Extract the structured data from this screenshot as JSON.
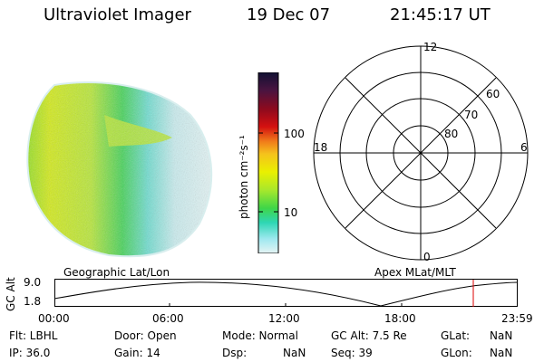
{
  "header": {
    "instrument": "Ultraviolet Imager",
    "date": "19 Dec 07",
    "time": "21:45:17 UT"
  },
  "colorbar": {
    "unit_label": "photon cm⁻²s⁻¹",
    "ticks": [
      "100",
      "10"
    ],
    "colors": [
      "#111133",
      "#4a1440",
      "#8c0a1e",
      "#d41010",
      "#f07a1a",
      "#f5c21c",
      "#eaf000",
      "#a8e82c",
      "#3fd648",
      "#2ed6b4",
      "#9ee8ef",
      "#e6f4f4"
    ]
  },
  "polar": {
    "mlt_labels": {
      "top": "12",
      "left": "18",
      "right": "6",
      "bottom": "0"
    },
    "lat_labels": [
      "60",
      "70",
      "80"
    ]
  },
  "map_labels": {
    "left": "Geographic Lat/Lon",
    "right": "Apex MLat/MLT"
  },
  "altitude_plot": {
    "ylabel": "GC Alt",
    "yticks": [
      "9.0",
      "1.8"
    ],
    "xticks": [
      "00:00",
      "06:00",
      "12:00",
      "18:00",
      "23:59"
    ],
    "marker_time": "21:45:17",
    "marker_color": "#dd0000"
  },
  "info": {
    "flt": "Flt: LBHL",
    "ip": "IP: 36.0",
    "door": "Door: Open",
    "gain": "Gain: 14",
    "mode": "Mode: Normal",
    "dsp": "Dsp:",
    "dsp_val": "NaN",
    "gcalt": "GC Alt: 7.5 Re",
    "seq": "Seq: 39",
    "glat": "GLat:",
    "glat_val": "NaN",
    "glon": "GLon:",
    "glon_val": "NaN"
  }
}
